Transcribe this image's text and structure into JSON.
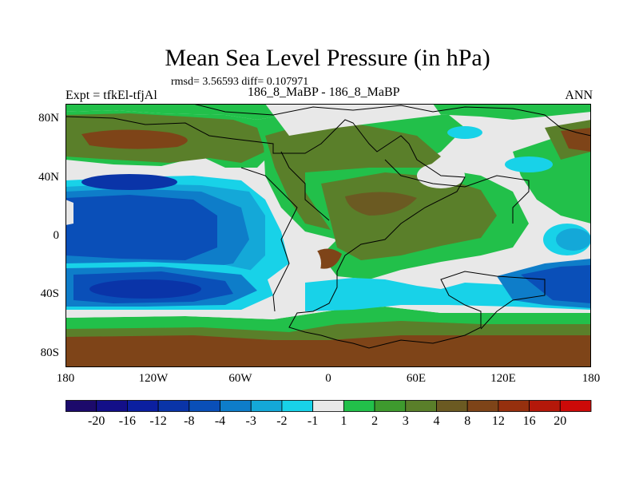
{
  "figure": {
    "title": "Mean Sea Level Pressure (in hPa)",
    "stats": "rmsd= 3.56593 diff= 0.107971",
    "expt": "Expt = tfkEl-tfjAl",
    "cases": "186_8_MaBP - 186_8_MaBP",
    "season": "ANN"
  },
  "axes": {
    "lat_ticks": [
      "80N",
      "40N",
      "0",
      "40S",
      "80S"
    ],
    "lon_ticks": [
      "180",
      "120W",
      "60W",
      "0",
      "60E",
      "120E",
      "180"
    ]
  },
  "colorbar": {
    "labels": [
      "-20",
      "-16",
      "-12",
      "-8",
      "-4",
      "-3",
      "-2",
      "-1",
      "1",
      "2",
      "3",
      "4",
      "8",
      "12",
      "16",
      "20"
    ],
    "colors": [
      "#1c0a6b",
      "#130f88",
      "#0b1fa0",
      "#0a34a8",
      "#0a4fb8",
      "#0e7dc9",
      "#14a8d8",
      "#18d2e8",
      "#e8e8e8",
      "#22c04a",
      "#3e9a2e",
      "#5a7f2a",
      "#6b5a22",
      "#7e4418",
      "#96300e",
      "#b4180a",
      "#cc0a08"
    ]
  }
}
